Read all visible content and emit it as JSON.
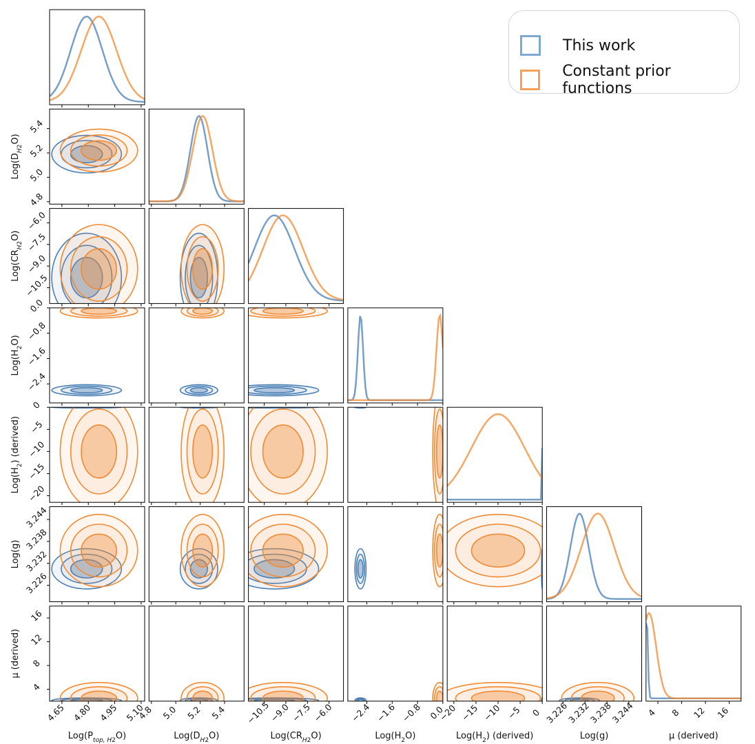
{
  "chart_data": {
    "type": "corner",
    "parameters": [
      {
        "id": "ptop",
        "label": "Log(P",
        "sub": "top, H",
        "sub2": "2",
        "tail": "O)",
        "range": [
          4.58,
          5.12
        ],
        "ticks": [
          "4.65",
          "4.80",
          "4.95",
          "5.10"
        ],
        "tick_values": [
          4.65,
          4.8,
          4.95,
          5.1
        ]
      },
      {
        "id": "dh2o",
        "label": "Log(D",
        "sub": "H",
        "sub2": "2",
        "tail": "O)",
        "range": [
          4.78,
          5.56
        ],
        "ticks": [
          "4.8",
          "5.0",
          "5.2",
          "5.4"
        ],
        "tick_values": [
          4.8,
          5.0,
          5.2,
          5.4
        ]
      },
      {
        "id": "crh2o",
        "label": "Log(CR",
        "sub": "H",
        "sub2": "2",
        "tail": "O)",
        "range": [
          -11.6,
          -5.0
        ],
        "ticks": [
          "−10.5",
          "−9.0",
          "−7.5",
          "−6.0"
        ],
        "tick_values": [
          -10.5,
          -9.0,
          -7.5,
          -6.0
        ]
      },
      {
        "id": "h2o",
        "label": "Log(H",
        "sub": "",
        "sub2": "2",
        "tail": "O)",
        "range": [
          -3.0,
          0.0
        ],
        "ticks": [
          "−2.4",
          "−1.6",
          "−0.8",
          "0.0"
        ],
        "tick_values": [
          -2.4,
          -1.6,
          -0.8,
          0.0
        ]
      },
      {
        "id": "h2",
        "label": "Log(H",
        "sub": "",
        "sub2": "2",
        "tail": ") (derived)",
        "range": [
          -21.5,
          0.0
        ],
        "ticks": [
          "−20",
          "−15",
          "−10",
          "−5",
          "0"
        ],
        "tick_values": [
          -20,
          -15,
          -10,
          -5,
          0
        ]
      },
      {
        "id": "logg",
        "label": "Log(g)",
        "sub": "",
        "sub2": "",
        "tail": "",
        "range": [
          3.2215,
          3.2475
        ],
        "ticks": [
          "3.226",
          "3.232",
          "3.238",
          "3.244"
        ],
        "tick_values": [
          3.226,
          3.232,
          3.238,
          3.244
        ]
      },
      {
        "id": "mu",
        "label": "μ (derived)",
        "sub": "",
        "sub2": "",
        "tail": "",
        "range": [
          2.0,
          18.0
        ],
        "ticks": [
          "4",
          "8",
          "12",
          "16"
        ],
        "tick_values": [
          4,
          8,
          12,
          16
        ]
      }
    ],
    "series": [
      {
        "name": "This work",
        "color": "#4a7fb5",
        "means": [
          4.79,
          5.19,
          -9.8,
          -2.6,
          -0.05,
          3.2305,
          2.1
        ],
        "sds": [
          0.09,
          0.07,
          1.4,
          0.08,
          0.05,
          0.0025,
          0.2
        ]
      },
      {
        "name": "Constant prior functions",
        "color": "#f18a33",
        "means": [
          4.86,
          5.22,
          -9.2,
          -0.1,
          -10.0,
          3.2355,
          2.5
        ],
        "sds": [
          0.1,
          0.08,
          1.4,
          0.1,
          6.0,
          0.0045,
          1.2
        ]
      }
    ],
    "legend": [
      "This work",
      "Constant prior functions"
    ],
    "legend_placement": "top-right"
  }
}
